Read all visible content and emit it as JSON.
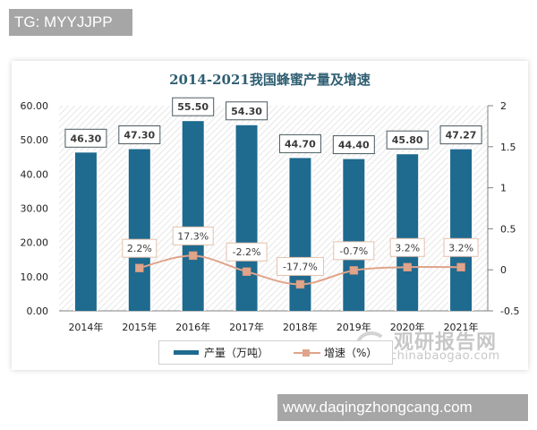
{
  "watermarks": {
    "top": "TG: MYYJJPP",
    "bottom": "www.daqingzhongcang.com"
  },
  "logo": {
    "cn": "观研报告网",
    "en": "chinabaogao.com"
  },
  "legend": {
    "bar_label": "产量（万吨）",
    "line_label": "增速（%）"
  },
  "colors": {
    "bar": "#1f6a8f",
    "line": "#e0a48a",
    "title": "#2f5f73"
  },
  "chart_data": {
    "type": "bar+line",
    "title": "2014-2021我国蜂蜜产量及增速",
    "categories": [
      "2014年",
      "2015年",
      "2016年",
      "2017年",
      "2018年",
      "2019年",
      "2020年",
      "2021年"
    ],
    "series": [
      {
        "name": "产量（万吨）",
        "type": "bar",
        "axis": "left",
        "values": [
          46.3,
          47.3,
          55.5,
          54.3,
          44.7,
          44.4,
          45.8,
          47.27
        ],
        "labels": [
          "46.30",
          "47.30",
          "55.50",
          "54.30",
          "44.70",
          "44.40",
          "45.80",
          "47.27"
        ]
      },
      {
        "name": "增速（%）",
        "type": "line",
        "axis": "right",
        "values": [
          null,
          0.022,
          0.173,
          -0.022,
          -0.177,
          -0.007,
          0.032,
          0.032
        ],
        "labels": [
          null,
          "2.2%",
          "17.3%",
          "-2.2%",
          "-17.7%",
          "-0.7%",
          "3.2%",
          "3.2%"
        ]
      }
    ],
    "y_left": {
      "min": 0,
      "max": 60,
      "ticks": [
        "0.00",
        "10.00",
        "20.00",
        "30.00",
        "40.00",
        "50.00",
        "60.00"
      ]
    },
    "y_right": {
      "min": -0.5,
      "max": 2,
      "ticks": [
        "-0.5",
        "0",
        "0.5",
        "1",
        "1.5",
        "2"
      ]
    },
    "grid": false,
    "legend_position": "bottom"
  }
}
